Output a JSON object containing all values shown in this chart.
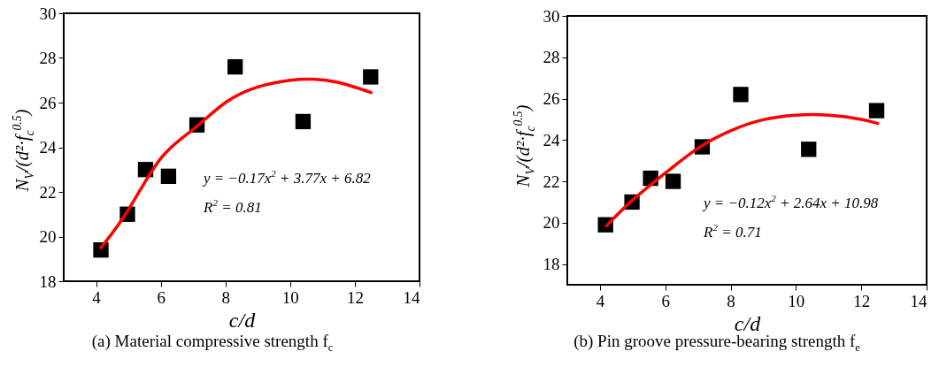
{
  "chart_data": [
    {
      "type": "scatter",
      "title": "(a) Material compressive strength f$_{c}$",
      "xlabel": "c/d",
      "ylabel": "N$_{V}$/(d²·f$_{c}$$^{0.5}$)",
      "annotations": [
        "y = −0.17x$^{2}$ + 3.77x + 6.82",
        "R$^{2}$ = 0.81"
      ],
      "xlim": [
        3,
        14
      ],
      "xticks": [
        4,
        6,
        8,
        10,
        12,
        14
      ],
      "ylim": [
        18,
        30
      ],
      "yticks": [
        18,
        20,
        22,
        24,
        26,
        28,
        30
      ],
      "grid": false,
      "series": [
        {
          "marker": "square",
          "color": "#000000",
          "x": [
            4.15,
            4.97,
            5.53,
            6.24,
            7.12,
            8.3,
            10.4,
            12.49
          ],
          "values": [
            19.4,
            21.0,
            23.0,
            22.7,
            25.0,
            27.6,
            25.15,
            27.15
          ]
        },
        {
          "type": "line",
          "marker": "none",
          "color": "#ff0000",
          "x": [
            4.15,
            5,
            6,
            7,
            8,
            9,
            10,
            10.7,
            11.5,
            12.5
          ],
          "values": [
            19.5,
            21.2,
            23.5,
            24.8,
            26.0,
            26.7,
            27.0,
            27.05,
            26.9,
            26.45
          ]
        }
      ]
    },
    {
      "type": "scatter",
      "title": "(b) Pin groove pressure-bearing strength f$_{e}$",
      "xlabel": "c/d",
      "ylabel": "N$_{V}$/(d²·f$_{c}$$^{0.5}$)",
      "annotations": [
        "y = −0.12x$^{2}$ + 2.64x + 10.98",
        "R$^{2}$ = 0.71"
      ],
      "xlim": [
        3,
        14
      ],
      "xticks": [
        4,
        6,
        8,
        10,
        12,
        14
      ],
      "ylim": [
        17,
        30
      ],
      "yticks": [
        18,
        20,
        22,
        24,
        26,
        28,
        30
      ],
      "grid": false,
      "series": [
        {
          "marker": "square",
          "color": "#000000",
          "x": [
            4.17,
            4.98,
            5.55,
            6.24,
            7.13,
            8.31,
            10.39,
            12.47
          ],
          "values": [
            19.9,
            21.0,
            22.15,
            22.0,
            23.67,
            26.2,
            23.55,
            25.42
          ]
        },
        {
          "type": "line",
          "marker": "none",
          "color": "#ff0000",
          "x": [
            4.2,
            5,
            6,
            7,
            8,
            9,
            10,
            11,
            12,
            12.5
          ],
          "values": [
            19.85,
            21.1,
            22.4,
            23.6,
            24.45,
            24.98,
            25.2,
            25.2,
            25.0,
            24.8
          ]
        }
      ]
    }
  ]
}
